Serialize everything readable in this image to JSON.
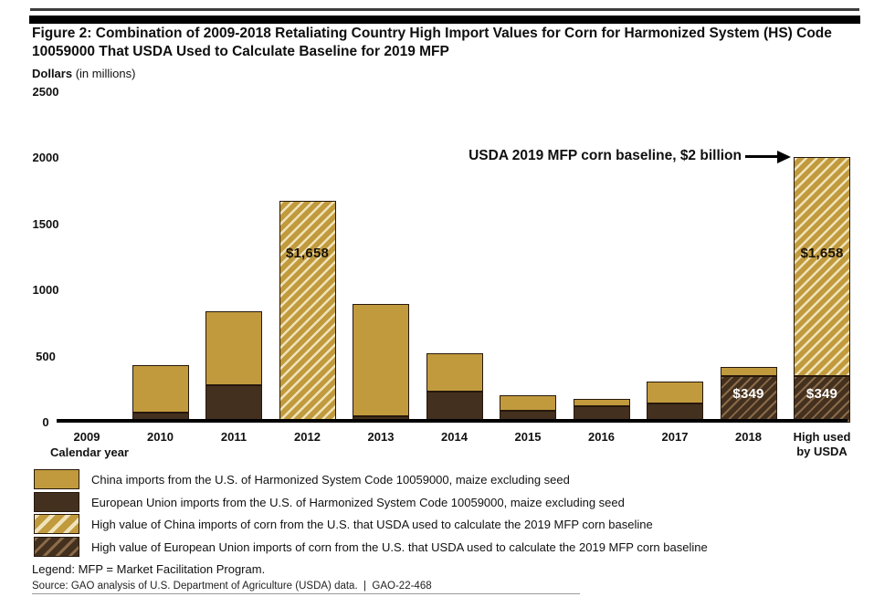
{
  "figure": {
    "title": "Figure 2: Combination of 2009-2018 Retaliating Country High Import Values for Corn for Harmonized System (HS) Code\n10059000 That USDA Used to Calculate Baseline for 2019 MFP"
  },
  "axis": {
    "unit_bold": "Dollars",
    "unit_note": " (in millions)",
    "x_title": "Calendar year"
  },
  "annotation": {
    "text": "USDA 2019 MFP corn baseline, $2 billion"
  },
  "chart_data": {
    "type": "bar",
    "stacked": true,
    "title": "Combination of 2009-2018 Retaliating Country High Import Values for Corn for HS Code 10059000 That USDA Used to Calculate Baseline for 2019 MFP",
    "ylabel": "Dollars (in millions)",
    "xlabel": "Calendar year",
    "ylim": [
      0,
      2500
    ],
    "y_ticks": [
      2500,
      2000,
      1500,
      1000,
      500,
      0
    ],
    "grid": false,
    "legend_position": "bottom",
    "categories": [
      "2009",
      "2010",
      "2011",
      "2012",
      "2013",
      "2014",
      "2015",
      "2016",
      "2017",
      "2018",
      "High used by USDA"
    ],
    "x_tick_labels": [
      "2009",
      "2010",
      "2011",
      "2012",
      "2013",
      "2014",
      "2015",
      "2016",
      "2017",
      "2018",
      "High used\nby USDA"
    ],
    "series": [
      {
        "name": "China imports from the U.S. of Harmonized System Code 10059000, maize excluding seed",
        "color": "#C19A3D",
        "values": [
          8,
          358,
          558,
          1658,
          849,
          289,
          117,
          57,
          165,
          71,
          1658
        ]
      },
      {
        "name": "European Union imports from the U.S. of Harmonized System Code 10059000, maize excluding seed",
        "color": "#44301E",
        "values": [
          20,
          76,
          283,
          20,
          48,
          235,
          90,
          122,
          145,
          349,
          349
        ]
      }
    ],
    "china_hatched_indices": [
      3,
      10
    ],
    "eu_hatched_indices": [
      9,
      10
    ],
    "value_labels": [
      {
        "index": 3,
        "series": "china",
        "text": "$1,658"
      },
      {
        "index": 9,
        "series": "eu",
        "text": "$349"
      },
      {
        "index": 10,
        "series": "china",
        "text": "$1,658"
      },
      {
        "index": 10,
        "series": "eu",
        "text": "$349"
      }
    ],
    "hatch_colors": {
      "china_stripe": "#EFE3BA",
      "eu_stripe": "#8A6B49"
    }
  },
  "legend": {
    "items": [
      {
        "swatch": "china-solid",
        "label": "China imports from the U.S. of Harmonized System Code 10059000, maize excluding seed"
      },
      {
        "swatch": "eu-solid",
        "label": "European Union imports from the U.S. of Harmonized System Code 10059000, maize excluding seed"
      },
      {
        "swatch": "china-hatch",
        "label": "High value of China imports of corn from the U.S. that USDA used to calculate the 2019 MFP corn baseline"
      },
      {
        "swatch": "eu-hatch",
        "label": "High value of European Union imports of corn from the U.S. that USDA used to calculate the 2019 MFP corn baseline"
      }
    ]
  },
  "footer": {
    "legend_note": "Legend: MFP = Market Facilitation Program.",
    "source": "Source: GAO analysis of U.S. Department of Agriculture (USDA) data.  |  GAO-22-468"
  }
}
